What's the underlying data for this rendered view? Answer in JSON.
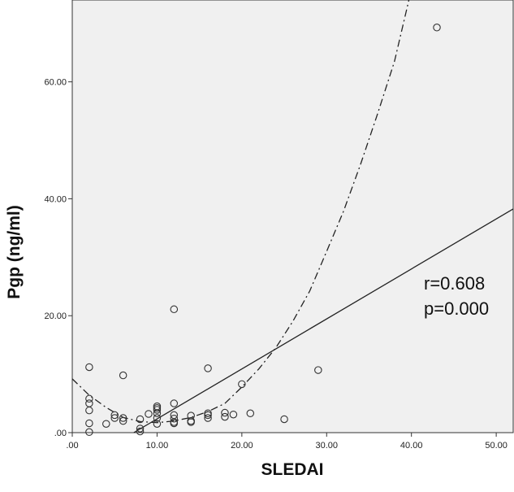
{
  "chart_data": {
    "type": "scatter",
    "xlabel": "SLEDAI",
    "ylabel": "Pgp (ng/ml)",
    "xlim": [
      0,
      52
    ],
    "ylim": [
      0,
      74
    ],
    "xticks": [
      ".00",
      "10.00",
      "20.00",
      "30.00",
      "40.00",
      "50.00"
    ],
    "yticks": [
      ".00",
      "20.00",
      "40.00",
      "60.00"
    ],
    "xtick_values": [
      0,
      10,
      20,
      30,
      40,
      50
    ],
    "ytick_values": [
      0,
      20,
      40,
      60
    ],
    "points": [
      [
        2,
        11.2
      ],
      [
        2,
        5.8
      ],
      [
        2,
        5.0
      ],
      [
        2,
        3.8
      ],
      [
        2,
        1.6
      ],
      [
        2,
        0.1
      ],
      [
        4,
        1.5
      ],
      [
        5,
        3.0
      ],
      [
        5,
        2.5
      ],
      [
        6,
        9.8
      ],
      [
        6,
        2.0
      ],
      [
        6,
        2.5
      ],
      [
        8,
        2.3
      ],
      [
        8,
        0.7
      ],
      [
        8,
        0.2
      ],
      [
        9,
        3.2
      ],
      [
        10,
        4.5
      ],
      [
        10,
        4.2
      ],
      [
        10,
        3.9
      ],
      [
        10,
        3.3
      ],
      [
        10,
        2.5
      ],
      [
        10,
        1.5
      ],
      [
        12,
        21.1
      ],
      [
        12,
        5.0
      ],
      [
        12,
        3.0
      ],
      [
        12,
        2.4
      ],
      [
        12,
        1.8
      ],
      [
        12,
        1.6
      ],
      [
        14,
        2.9
      ],
      [
        14,
        2.0
      ],
      [
        14,
        1.8
      ],
      [
        16,
        11.0
      ],
      [
        16,
        3.3
      ],
      [
        16,
        3.0
      ],
      [
        16,
        2.5
      ],
      [
        18,
        3.4
      ],
      [
        18,
        2.7
      ],
      [
        19,
        3.1
      ],
      [
        20,
        8.3
      ],
      [
        21,
        3.3
      ],
      [
        25,
        2.3
      ],
      [
        29,
        10.7
      ],
      [
        43,
        69.3
      ]
    ],
    "linear_fit": {
      "intercept": -6.2,
      "slope": 0.855
    },
    "curve_fit": [
      [
        0,
        9.2
      ],
      [
        2,
        6.4
      ],
      [
        4,
        4.3
      ],
      [
        6,
        2.6
      ],
      [
        8,
        1.9
      ],
      [
        10,
        1.7
      ],
      [
        12,
        2.0
      ],
      [
        14,
        2.6
      ],
      [
        16,
        3.6
      ],
      [
        18,
        5.0
      ],
      [
        20,
        7.8
      ],
      [
        22,
        10.9
      ],
      [
        24,
        14.5
      ],
      [
        26,
        19.0
      ],
      [
        28,
        24.2
      ],
      [
        30,
        31.0
      ],
      [
        32,
        37.9
      ],
      [
        34,
        45.9
      ],
      [
        36,
        54.5
      ],
      [
        38,
        63.5
      ],
      [
        39.7,
        74
      ]
    ],
    "annotations": [
      "r=0.608",
      "p=0.000"
    ],
    "grid": false,
    "colors": {
      "plot_background": "#f0f0f0",
      "line": "#222222",
      "marker_edge": "#333333"
    }
  }
}
